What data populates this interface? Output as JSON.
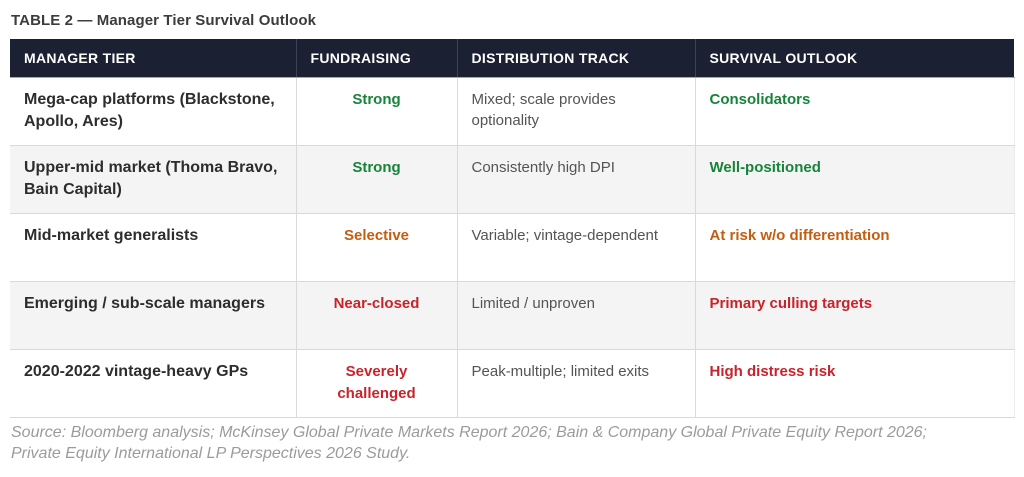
{
  "title": "TABLE 2 — Manager Tier Survival Outlook",
  "colors": {
    "header_bg": "#1b2032",
    "header_text": "#ffffff",
    "status_green": "#18843b",
    "status_orange": "#c45d10",
    "status_red": "#c8232b",
    "tier_text": "#2d2d2d",
    "body_text": "#545454",
    "row_alt_bg": "#f4f4f4",
    "border": "#d9d9d9",
    "source_text": "#9b9b9b"
  },
  "chart_data": {
    "type": "table",
    "title": "TABLE 2 — Manager Tier Survival Outlook",
    "columns": [
      "MANAGER TIER",
      "FUNDRAISING",
      "DISTRIBUTION TRACK",
      "SURVIVAL OUTLOOK"
    ],
    "rows": [
      {
        "tier": "Mega-cap platforms (Blackstone, Apollo, Ares)",
        "fundraising": "Strong",
        "distribution": "Mixed; scale provides optionality",
        "outlook": "Consolidators",
        "status_color": "#18843b"
      },
      {
        "tier": "Upper-mid market (Thoma Bravo, Bain Capital)",
        "fundraising": "Strong",
        "distribution": "Consistently high DPI",
        "outlook": "Well-positioned",
        "status_color": "#18843b"
      },
      {
        "tier": "Mid-market generalists",
        "fundraising": "Selective",
        "distribution": "Variable; vintage-dependent",
        "outlook": "At risk w/o differentiation",
        "status_color": "#c45d10"
      },
      {
        "tier": "Emerging / sub-scale managers",
        "fundraising": "Near-closed",
        "distribution": "Limited / unproven",
        "outlook": "Primary culling targets",
        "status_color": "#c8232b"
      },
      {
        "tier": "2020-2022 vintage-heavy GPs",
        "fundraising": "Severely challenged",
        "distribution": "Peak-multiple; limited exits",
        "outlook": "High distress risk",
        "status_color": "#c8232b"
      }
    ],
    "source_line1": "Source: Bloomberg analysis; McKinsey Global Private Markets Report 2026; Bain & Company Global Private Equity Report 2026;",
    "source_line2": "Private Equity International LP Perspectives 2026 Study."
  }
}
